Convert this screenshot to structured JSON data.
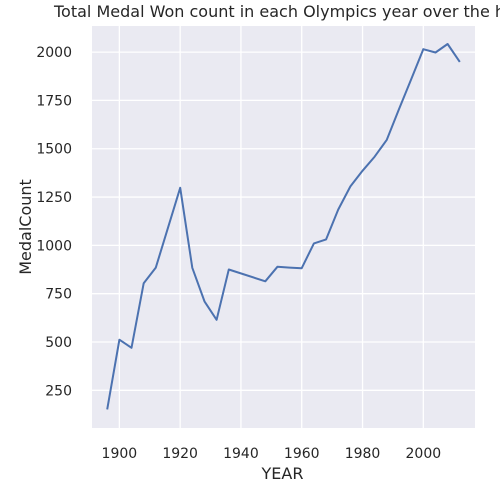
{
  "chart_data": {
    "type": "line",
    "title": "Total Medal Won count in each Olympics year over the history",
    "xlabel": "YEAR",
    "ylabel": "MedalCount",
    "xlim": [
      1891,
      2017
    ],
    "ylim": [
      55,
      2135
    ],
    "xticks": [
      1900,
      1920,
      1940,
      1960,
      1980,
      2000
    ],
    "yticks": [
      250,
      500,
      750,
      1000,
      1250,
      1500,
      1750,
      2000
    ],
    "grid": true,
    "colors": {
      "line": "#4c72b0",
      "plot_bg": "#eaeaf2",
      "grid": "#ffffff",
      "text": "#262626"
    },
    "series": [
      {
        "x": [
          1896,
          1900,
          1904,
          1908,
          1912,
          1920,
          1924,
          1928,
          1932,
          1936,
          1948,
          1952,
          1956,
          1960,
          1964,
          1968,
          1972,
          1976,
          1980,
          1984,
          1988,
          1992,
          1996,
          2000,
          2004,
          2008,
          2012
        ],
        "values": [
          151,
          512,
          470,
          804,
          885,
          1298,
          884,
          710,
          615,
          875,
          814,
          889,
          885,
          882,
          1010,
          1031,
          1185,
          1305,
          1386,
          1459,
          1546,
          1705,
          1859,
          2015,
          1998,
          2042,
          1949
        ]
      }
    ]
  }
}
